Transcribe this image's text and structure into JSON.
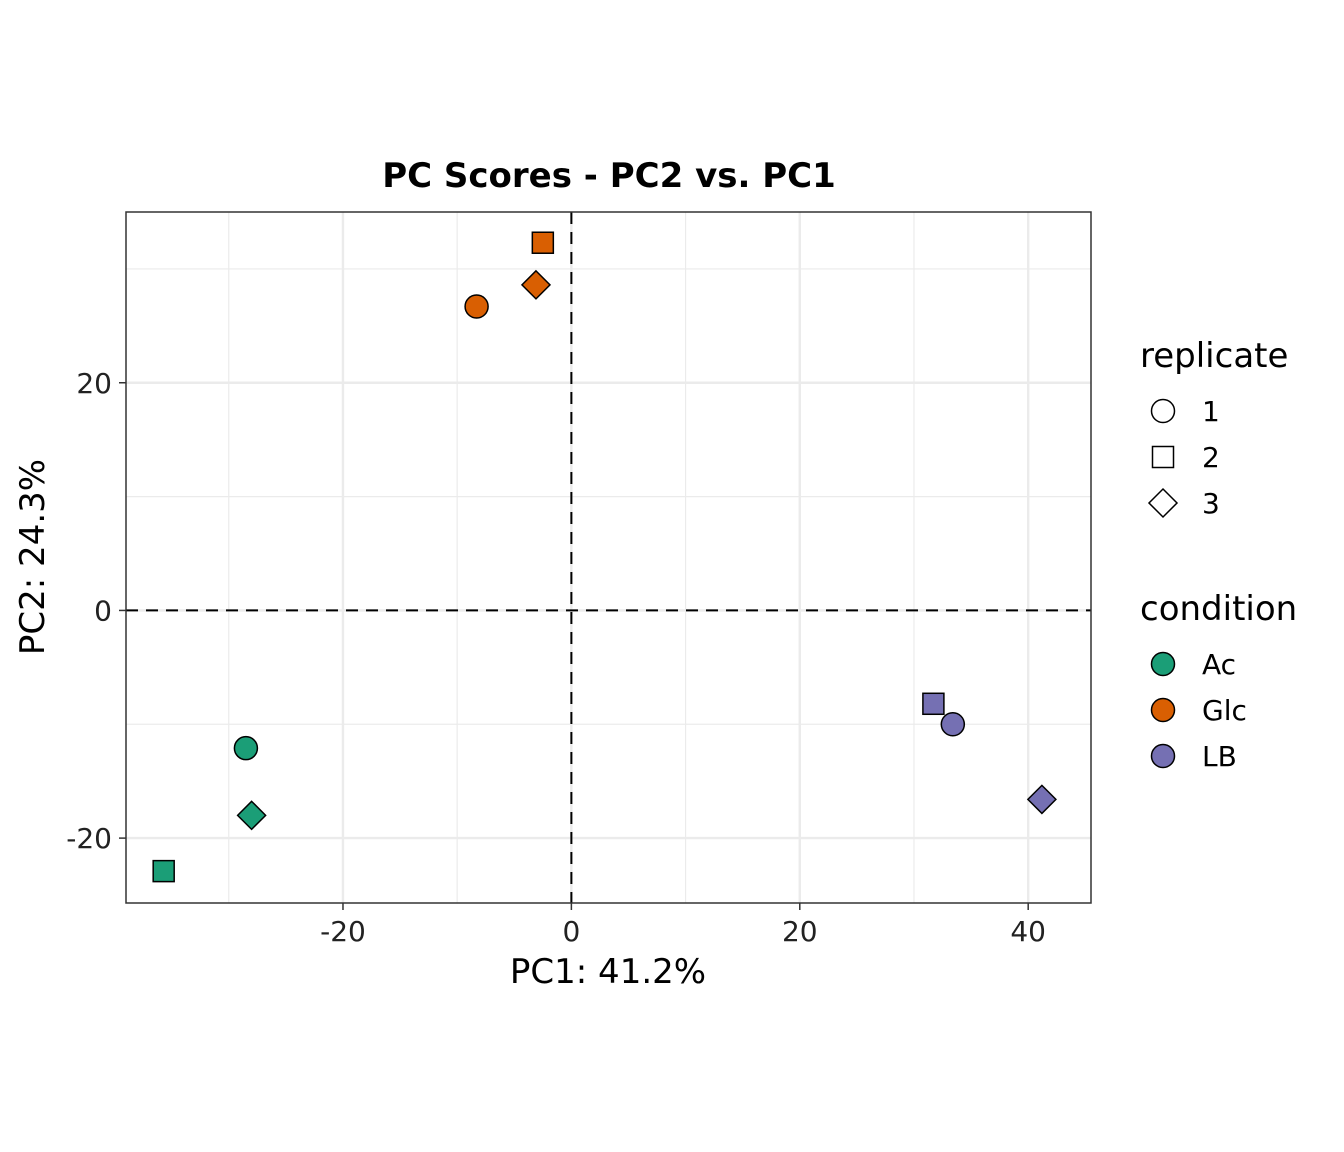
{
  "chart_data": {
    "type": "scatter",
    "title": "PC Scores - PC2 vs. PC1",
    "xlabel": "PC1: 41.2%",
    "ylabel": "PC2: 24.3%",
    "xlim": [
      -39,
      45.5
    ],
    "ylim": [
      -25.7,
      35
    ],
    "x_ticks": [
      -20,
      0,
      20,
      40
    ],
    "y_ticks": [
      -20,
      0,
      20
    ],
    "x_tick_labels": [
      "-20",
      "0",
      "20",
      "40"
    ],
    "y_tick_labels": [
      "-20",
      "0",
      "20"
    ],
    "grid": true,
    "reference_lines": [
      {
        "axis": "x",
        "value": 0,
        "style": "dashed"
      },
      {
        "axis": "y",
        "value": 0,
        "style": "dashed"
      }
    ],
    "legend_placement": "right",
    "legends": [
      {
        "title": "replicate",
        "items": [
          {
            "label": "1",
            "shape": "circle"
          },
          {
            "label": "2",
            "shape": "square"
          },
          {
            "label": "3",
            "shape": "diamond"
          }
        ]
      },
      {
        "title": "condition",
        "items": [
          {
            "label": "Ac",
            "color": "#1b9e77"
          },
          {
            "label": "Glc",
            "color": "#d95f02"
          },
          {
            "label": "LB",
            "color": "#7570b3"
          }
        ]
      }
    ],
    "shapes": {
      "1": "circle",
      "2": "square",
      "3": "diamond"
    },
    "colors": {
      "Ac": "#1b9e77",
      "Glc": "#d95f02",
      "LB": "#7570b3"
    },
    "points": [
      {
        "condition": "Ac",
        "replicate": "1",
        "x": -28.5,
        "y": -12.1
      },
      {
        "condition": "Ac",
        "replicate": "2",
        "x": -35.7,
        "y": -22.9
      },
      {
        "condition": "Ac",
        "replicate": "3",
        "x": -28.0,
        "y": -18.0
      },
      {
        "condition": "Glc",
        "replicate": "1",
        "x": -8.3,
        "y": 26.7
      },
      {
        "condition": "Glc",
        "replicate": "2",
        "x": -2.5,
        "y": 32.3
      },
      {
        "condition": "Glc",
        "replicate": "3",
        "x": -3.1,
        "y": 28.6
      },
      {
        "condition": "LB",
        "replicate": "1",
        "x": 33.4,
        "y": -10.0
      },
      {
        "condition": "LB",
        "replicate": "2",
        "x": 31.7,
        "y": -8.2
      },
      {
        "condition": "LB",
        "replicate": "3",
        "x": 41.2,
        "y": -16.6
      }
    ]
  }
}
